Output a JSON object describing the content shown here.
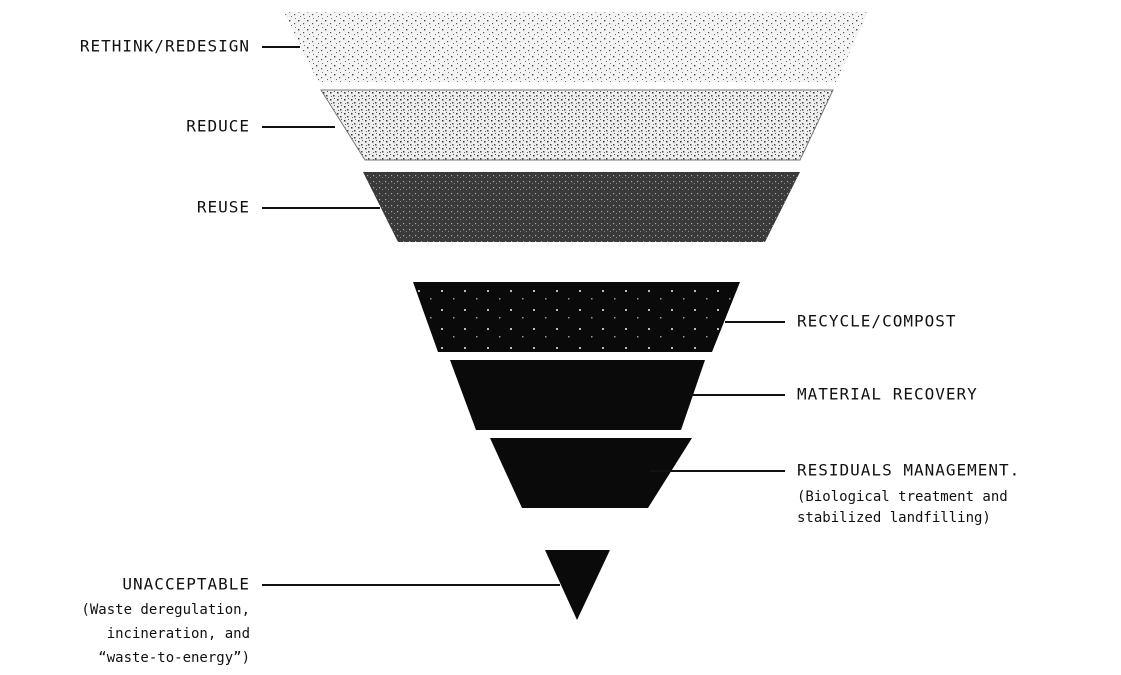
{
  "nodes": [
    {
      "label": "RETHINK/REDESIGN"
    },
    {
      "label": "REDUCE"
    },
    {
      "label": "REUSE"
    },
    {
      "label": "RECYCLE/COMPOST"
    },
    {
      "label": "MATERIAL RECOVERY"
    },
    {
      "label": "RESIDUALS MANAGEMENT.",
      "note": [
        "(Biological treatment and",
        "stabilized landfilling)"
      ]
    },
    {
      "label": "UNACCEPTABLE",
      "note": [
        "(Waste deregulation,",
        "incineration, and",
        "“waste-to-energy”)"
      ]
    }
  ]
}
